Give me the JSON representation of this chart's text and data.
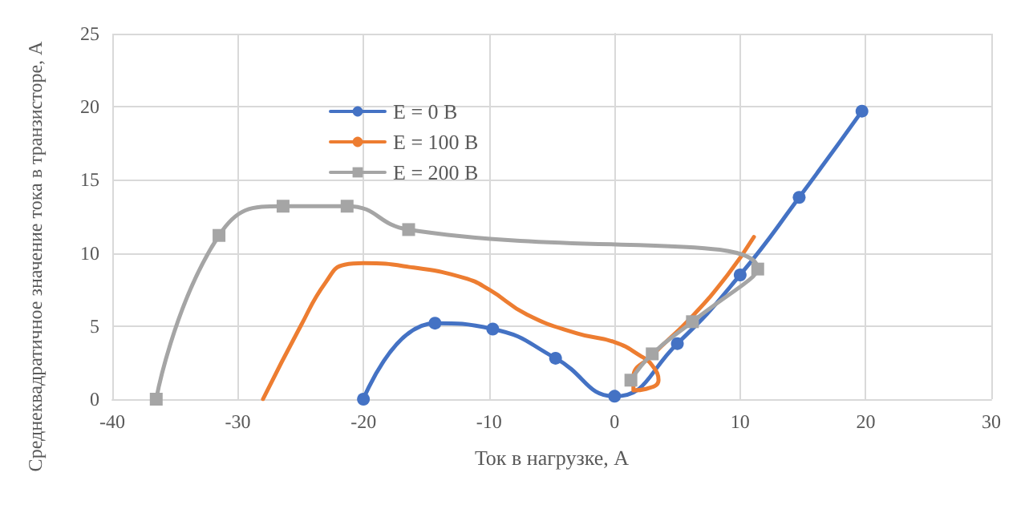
{
  "chart_data": {
    "type": "line",
    "xlabel": "Ток в нагрузке, А",
    "ylabel": "Среднеквадратичное значение тока в транзисторе, А",
    "xlim": [
      -40,
      30
    ],
    "xticks": [
      -40,
      -30,
      -20,
      -10,
      0,
      10,
      20,
      30
    ],
    "ylim": [
      0,
      25
    ],
    "yticks": [
      0,
      5,
      10,
      15,
      20,
      25
    ],
    "grid": true,
    "legend": "top left",
    "series": [
      {
        "name": "E = 0 В",
        "color": "#4472c4",
        "marker": "circle",
        "x": [
          -20,
          -14.3,
          -9.7,
          -4.7,
          0,
          5,
          10,
          14.7,
          19.7
        ],
        "values": [
          0,
          5.2,
          4.8,
          2.8,
          0.2,
          3.8,
          8.5,
          13.8,
          19.7
        ]
      },
      {
        "name": "E = 100 В",
        "color": "#ed7d31",
        "marker": "none",
        "x": [
          -28,
          -25,
          -23,
          -21.5,
          -20,
          -16,
          -12,
          -10,
          -7,
          -3,
          0,
          2,
          3,
          3.5,
          2.5,
          1.5,
          1.5,
          3,
          6,
          9,
          11.1
        ],
        "values": [
          0,
          5,
          8,
          9.2,
          9.3,
          9,
          8.3,
          7.5,
          5.8,
          4.5,
          3.9,
          3,
          2.3,
          1.3,
          0.7,
          0.6,
          1.5,
          3,
          5.5,
          8.5,
          11.1
        ]
      },
      {
        "name": "E = 200 В",
        "color": "#a5a5a5",
        "marker": "square",
        "x": [
          -36.5,
          -31.5,
          -26.4,
          -21.3,
          -16.4,
          11.4,
          6.2,
          3,
          1.3
        ],
        "values": [
          0,
          11.2,
          13.2,
          13.2,
          11.6,
          8.9,
          5.3,
          3.1,
          1.3
        ]
      }
    ]
  }
}
